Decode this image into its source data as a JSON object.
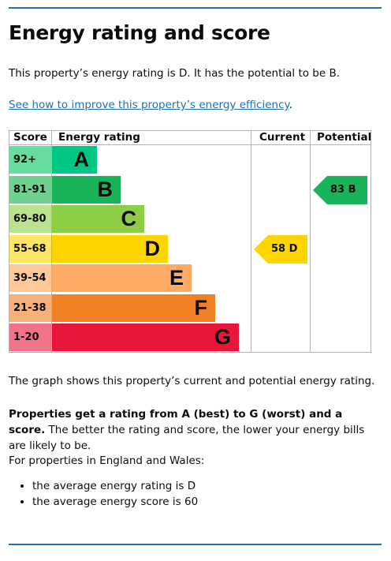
{
  "page": {
    "title": "Energy rating and score",
    "intro": "This property’s energy rating is D. It has the potential to be B.",
    "link_text": "See how to improve this property’s energy efficiency",
    "link_suffix": ".",
    "graph_caption": "The graph shows this property’s current and potential energy rating.",
    "scale_bold": "Properties get a rating from A (best) to G (worst) and a score.",
    "scale_rest": " The better the rating and score, the lower your energy bills are likely to be.",
    "regions_intro": "For properties in England and Wales:",
    "bullets": [
      "the average energy rating is D",
      "the average energy score is 60"
    ]
  },
  "chart_data": {
    "type": "table",
    "headers": {
      "score": "Score",
      "rating": "Energy rating",
      "current": "Current",
      "potential": "Potential"
    },
    "bands": [
      {
        "score": "92+",
        "letter": "A",
        "color": "#00c781",
        "score_color": "#66dd9f",
        "width_rank": 1
      },
      {
        "score": "81-91",
        "letter": "B",
        "color": "#19b459",
        "score_color": "#6fd08f",
        "width_rank": 2
      },
      {
        "score": "69-80",
        "letter": "C",
        "color": "#8dce46",
        "score_color": "#bce28f",
        "width_rank": 3
      },
      {
        "score": "55-68",
        "letter": "D",
        "color": "#ffd500",
        "score_color": "#ffe566",
        "width_rank": 4
      },
      {
        "score": "39-54",
        "letter": "E",
        "color": "#fcaa65",
        "score_color": "#fdc99b",
        "width_rank": 5
      },
      {
        "score": "21-38",
        "letter": "F",
        "color": "#ef8023",
        "score_color": "#f5b07b",
        "width_rank": 6
      },
      {
        "score": "1-20",
        "letter": "G",
        "color": "#e9153b",
        "score_color": "#f27389",
        "width_rank": 7
      }
    ],
    "current": {
      "score": 58,
      "letter": "D",
      "label": "58 D"
    },
    "potential": {
      "score": 83,
      "letter": "B",
      "label": "83 B"
    }
  }
}
